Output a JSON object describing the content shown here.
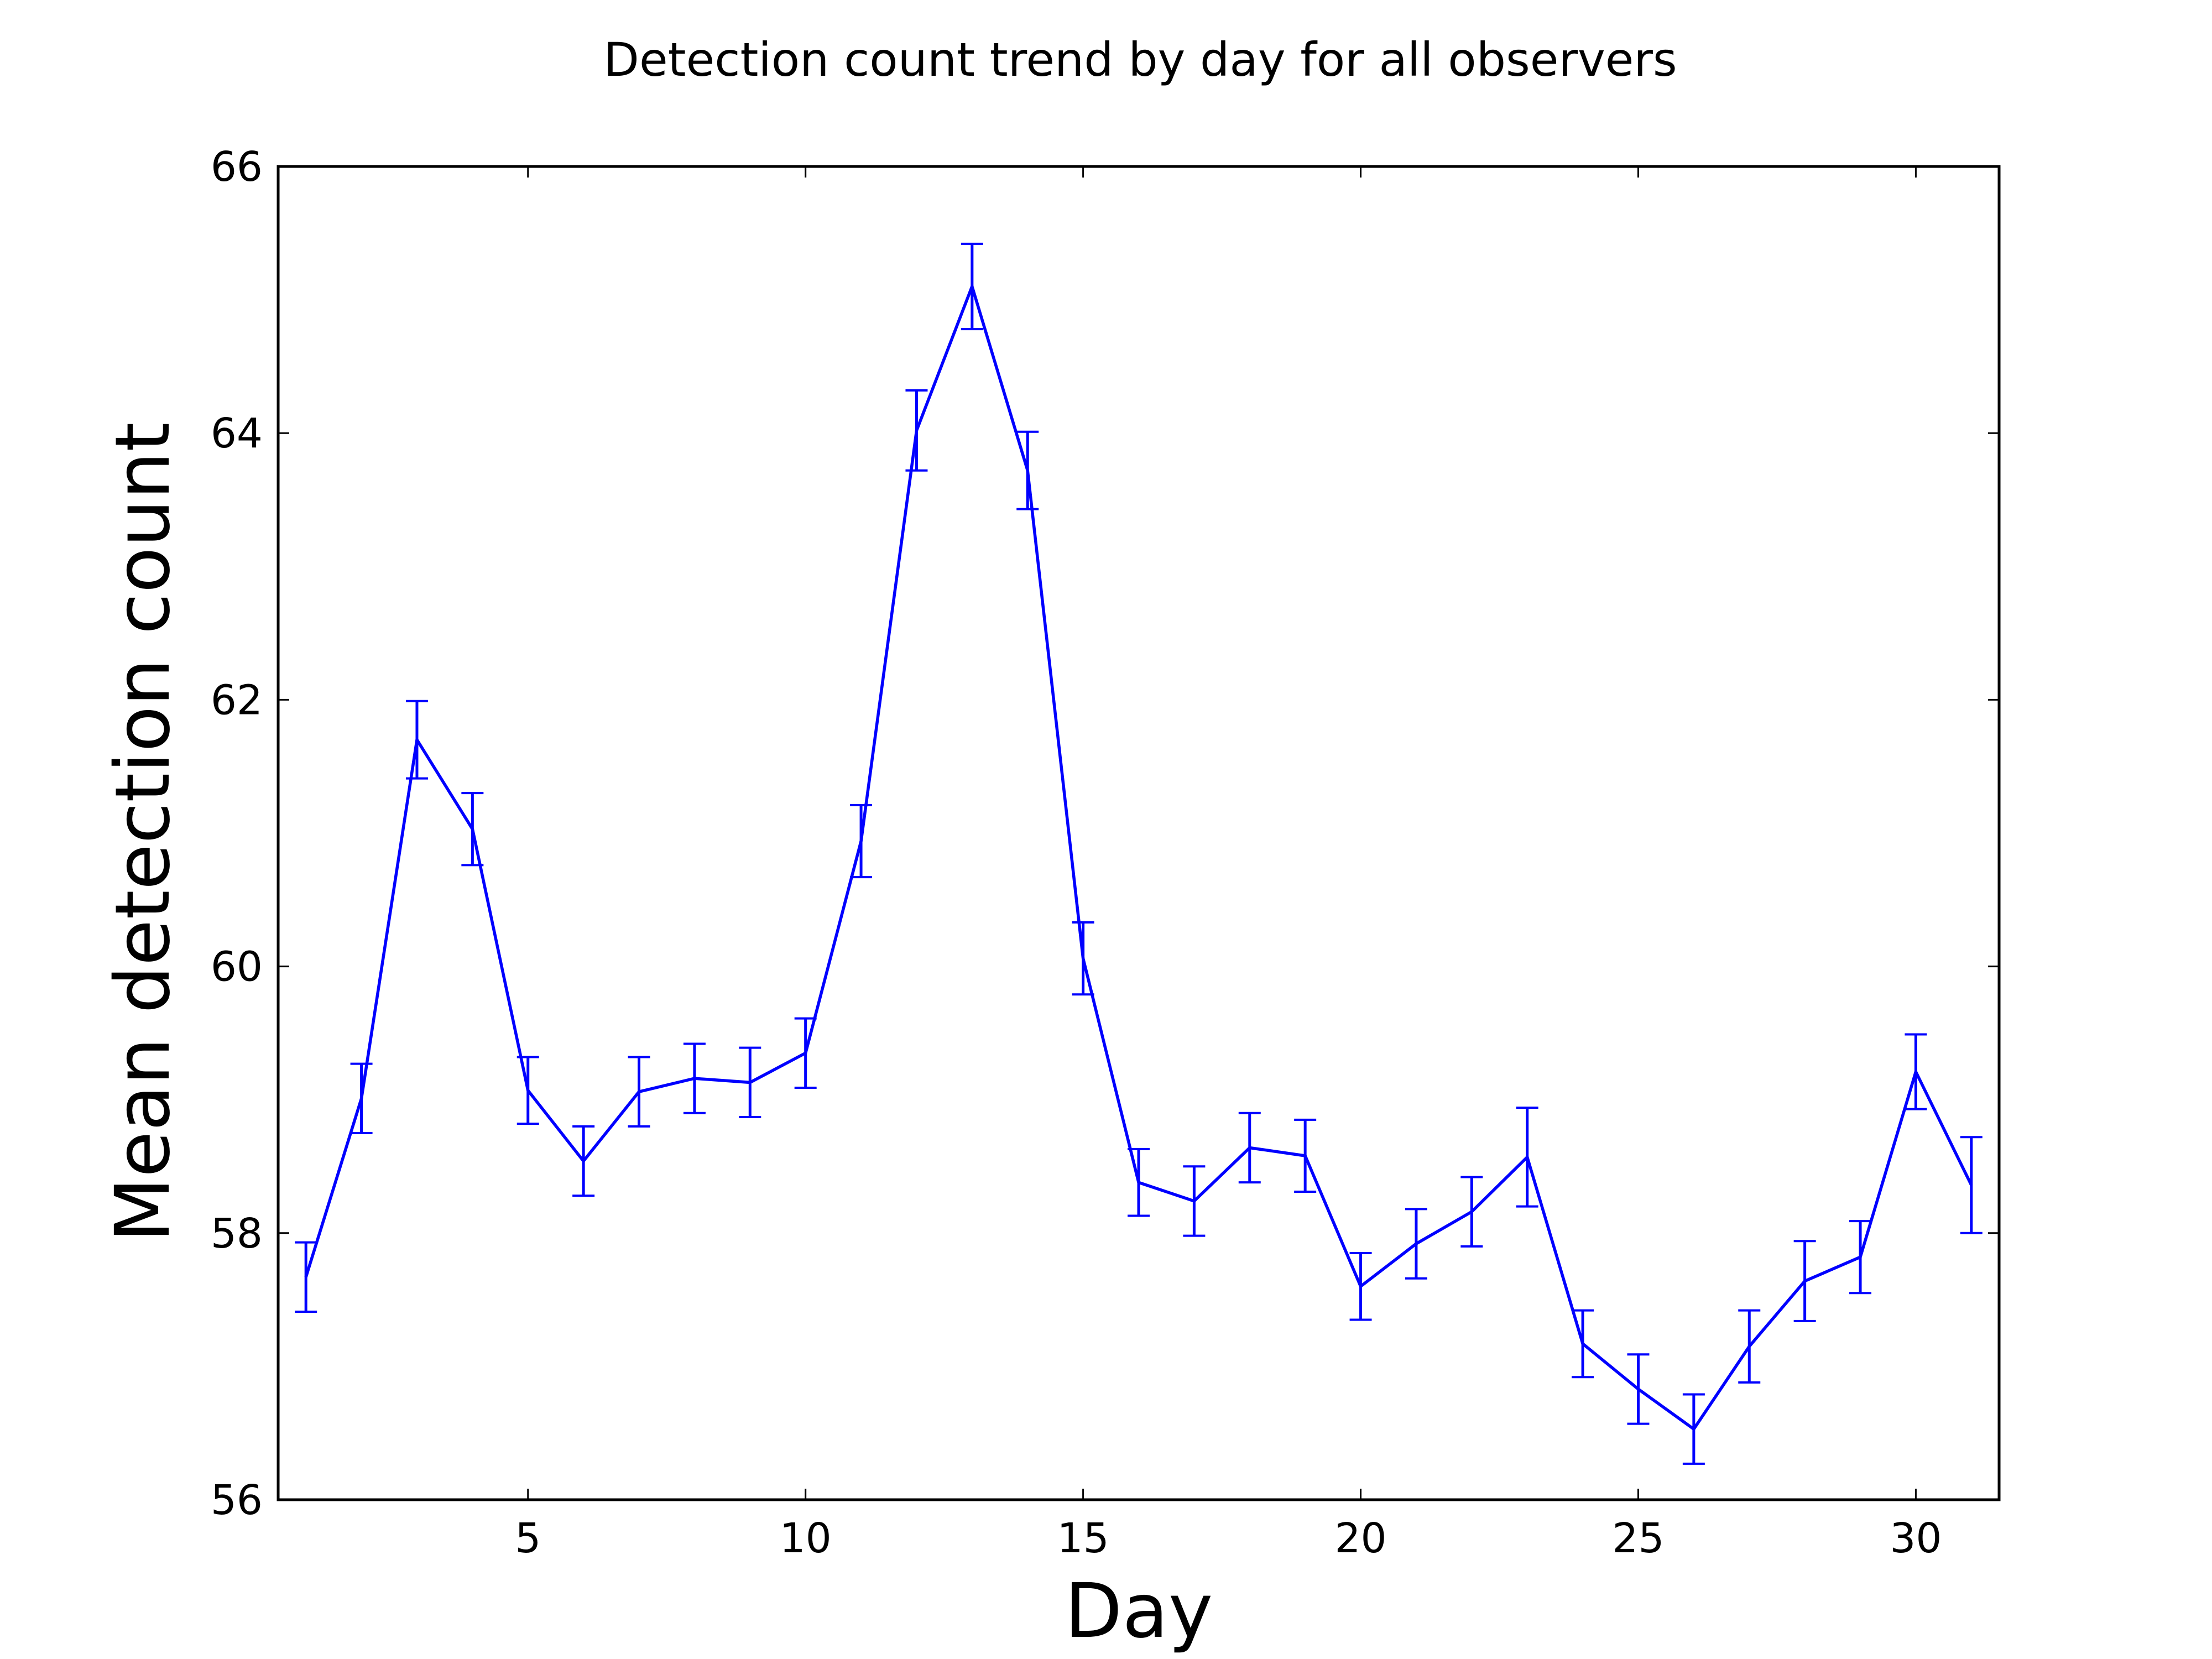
{
  "chart_data": {
    "type": "line",
    "title": "Detection count trend by day for all observers",
    "xlabel": "Day",
    "ylabel": "Mean detection count",
    "xlim": [
      0.5,
      31.5
    ],
    "ylim": [
      56,
      66
    ],
    "xticks": [
      5,
      10,
      15,
      20,
      25,
      30
    ],
    "yticks": [
      56,
      58,
      60,
      62,
      64,
      66
    ],
    "xtick_labels": [
      "5",
      "10",
      "15",
      "20",
      "25",
      "30"
    ],
    "ytick_labels": [
      "56",
      "58",
      "60",
      "62",
      "64",
      "66"
    ],
    "grid": false,
    "legend": null,
    "line_color": "#0000ff",
    "series": [
      {
        "name": "mean",
        "x": [
          1,
          2,
          3,
          4,
          5,
          6,
          7,
          8,
          9,
          10,
          11,
          12,
          13,
          14,
          15,
          16,
          17,
          18,
          19,
          20,
          21,
          22,
          23,
          24,
          25,
          26,
          27,
          28,
          29,
          30,
          31
        ],
        "values": [
          57.67,
          59.01,
          61.7,
          61.03,
          59.07,
          58.54,
          59.06,
          59.16,
          59.13,
          59.35,
          60.94,
          64.02,
          65.1,
          63.72,
          60.06,
          58.38,
          58.24,
          58.64,
          58.58,
          57.6,
          57.92,
          58.16,
          58.57,
          57.17,
          56.83,
          56.53,
          57.15,
          57.64,
          57.82,
          59.21,
          58.36
        ],
        "error": [
          0.26,
          0.26,
          0.29,
          0.27,
          0.25,
          0.26,
          0.26,
          0.26,
          0.26,
          0.26,
          0.27,
          0.3,
          0.32,
          0.29,
          0.27,
          0.25,
          0.26,
          0.26,
          0.27,
          0.25,
          0.26,
          0.26,
          0.37,
          0.25,
          0.26,
          0.26,
          0.27,
          0.3,
          0.27,
          0.28,
          0.36
        ]
      }
    ]
  }
}
